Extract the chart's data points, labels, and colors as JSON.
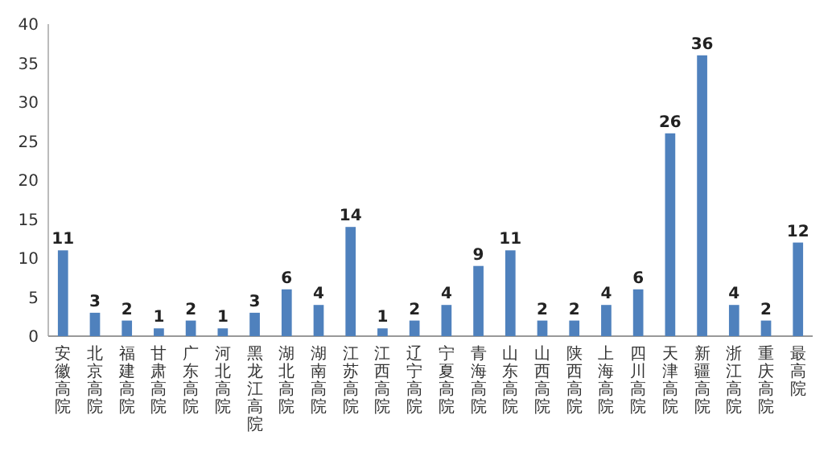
{
  "chart_data": {
    "type": "bar",
    "categories": [
      "安徽高院",
      "北京高院",
      "福建高院",
      "甘肃高院",
      "广东高院",
      "河北高院",
      "黑龙江高院",
      "湖北高院",
      "湖南高院",
      "江苏高院",
      "江西高院",
      "辽宁高院",
      "宁夏高院",
      "青海高院",
      "山东高院",
      "山西高院",
      "陕西高院",
      "上海高院",
      "四川高院",
      "天津高院",
      "新疆高院",
      "浙江高院",
      "重庆高院",
      "最高院"
    ],
    "values": [
      11,
      3,
      2,
      1,
      2,
      1,
      3,
      6,
      4,
      14,
      1,
      2,
      4,
      9,
      11,
      2,
      2,
      4,
      6,
      26,
      36,
      4,
      2,
      12
    ],
    "color": "#4f81bd",
    "ylim": [
      0,
      40
    ],
    "yticks": [
      0,
      5,
      10,
      15,
      20,
      25,
      30,
      35,
      40
    ],
    "data_labels": true,
    "grid": false
  }
}
